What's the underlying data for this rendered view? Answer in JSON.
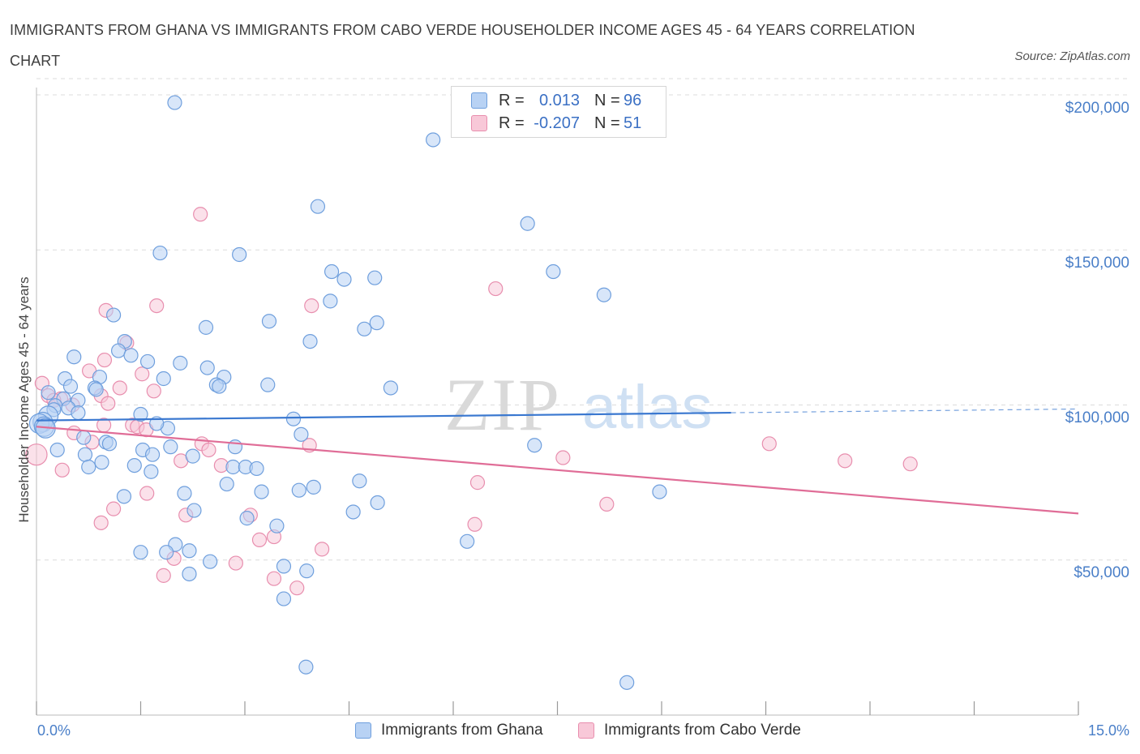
{
  "title": "IMMIGRANTS FROM GHANA VS IMMIGRANTS FROM CABO VERDE HOUSEHOLDER INCOME AGES 45 - 64 YEARS CORRELATION CHART",
  "source": "Source: ZipAtlas.com",
  "watermark": {
    "zip": "ZIP",
    "atlas": "atlas"
  },
  "stats": {
    "r_label": "R =",
    "n_label": "N =",
    "ghana": {
      "r": "0.013",
      "n": "96"
    },
    "cabo": {
      "r": "-0.207",
      "n": "51"
    }
  },
  "colors": {
    "ghana_fill": "#b8d2f4",
    "ghana_stroke": "#6f9fdd",
    "ghana_line": "#3a78d0",
    "cabo_fill": "#f8c8d8",
    "cabo_stroke": "#e88eae",
    "cabo_line": "#e06d97",
    "grid": "#dcdcdc",
    "tick_label": "#4a7fc8"
  },
  "chart_data": {
    "type": "scatter",
    "title": "IMMIGRANTS FROM GHANA VS IMMIGRANTS FROM CABO VERDE HOUSEHOLDER INCOME AGES 45 - 64 YEARS CORRELATION CHART",
    "xlabel": "",
    "ylabel": "Householder Income Ages 45 - 64 years",
    "xlim": [
      0,
      15
    ],
    "ylim": [
      0,
      200000
    ],
    "x_tick_labels": [
      "0.0%",
      "15.0%"
    ],
    "y_ticks": [
      {
        "value": 200000,
        "label": "$200,000"
      },
      {
        "value": 150000,
        "label": "$150,000"
      },
      {
        "value": 100000,
        "label": "$100,000"
      },
      {
        "value": 50000,
        "label": "$50,000"
      }
    ],
    "grid": true,
    "legend": "bottom-center",
    "series": [
      {
        "name": "Immigrants from Ghana",
        "color": "#6f9fdd",
        "trend": {
          "x0": 0,
          "y0": 95000,
          "x1": 10,
          "y1": 97500,
          "dashed_to_x": 15,
          "dashed_to_y": 98700
        },
        "points": [
          [
            1.99,
            197500
          ],
          [
            5.71,
            185500
          ],
          [
            4.05,
            164000
          ],
          [
            7.07,
            158500
          ],
          [
            1.78,
            149000
          ],
          [
            2.92,
            148500
          ],
          [
            4.25,
            143000
          ],
          [
            4.43,
            140500
          ],
          [
            4.87,
            141000
          ],
          [
            7.44,
            143000
          ],
          [
            8.17,
            135500
          ],
          [
            4.23,
            133500
          ],
          [
            1.11,
            129000
          ],
          [
            3.35,
            127000
          ],
          [
            4.72,
            124500
          ],
          [
            4.9,
            126500
          ],
          [
            2.44,
            125000
          ],
          [
            3.94,
            120500
          ],
          [
            1.27,
            120500
          ],
          [
            1.18,
            117500
          ],
          [
            0.54,
            115500
          ],
          [
            1.36,
            116000
          ],
          [
            1.6,
            114000
          ],
          [
            2.07,
            113500
          ],
          [
            2.46,
            112000
          ],
          [
            0.91,
            109000
          ],
          [
            1.83,
            108500
          ],
          [
            2.7,
            109000
          ],
          [
            0.41,
            108500
          ],
          [
            0.49,
            106000
          ],
          [
            0.84,
            105500
          ],
          [
            0.86,
            105000
          ],
          [
            2.59,
            106500
          ],
          [
            2.63,
            106000
          ],
          [
            3.33,
            106500
          ],
          [
            5.1,
            105500
          ],
          [
            0.17,
            104000
          ],
          [
            0.39,
            102000
          ],
          [
            0.6,
            101500
          ],
          [
            0.27,
            99800
          ],
          [
            0.46,
            99000
          ],
          [
            0.25,
            98500
          ],
          [
            0.17,
            96500
          ],
          [
            1.5,
            97000
          ],
          [
            3.7,
            95500
          ],
          [
            0.09,
            94500
          ],
          [
            0.04,
            94000
          ],
          [
            0.11,
            93000
          ],
          [
            0.13,
            92500
          ],
          [
            1.89,
            92500
          ],
          [
            3.81,
            90500
          ],
          [
            0.68,
            89500
          ],
          [
            1.0,
            88000
          ],
          [
            1.05,
            87500
          ],
          [
            1.93,
            86500
          ],
          [
            2.86,
            86500
          ],
          [
            1.53,
            85500
          ],
          [
            0.3,
            85500
          ],
          [
            1.67,
            84000
          ],
          [
            0.7,
            84000
          ],
          [
            2.25,
            83500
          ],
          [
            0.94,
            81500
          ],
          [
            0.75,
            80000
          ],
          [
            1.41,
            80500
          ],
          [
            2.83,
            80000
          ],
          [
            3.01,
            80000
          ],
          [
            3.17,
            79500
          ],
          [
            1.65,
            78500
          ],
          [
            4.65,
            75500
          ],
          [
            2.74,
            74500
          ],
          [
            3.99,
            73500
          ],
          [
            3.78,
            72500
          ],
          [
            3.24,
            72000
          ],
          [
            8.97,
            72000
          ],
          [
            1.26,
            70500
          ],
          [
            2.13,
            71500
          ],
          [
            4.91,
            68500
          ],
          [
            4.56,
            65500
          ],
          [
            2.27,
            66000
          ],
          [
            3.03,
            63500
          ],
          [
            3.46,
            61000
          ],
          [
            6.2,
            56000
          ],
          [
            2.0,
            55000
          ],
          [
            2.2,
            53000
          ],
          [
            1.5,
            52500
          ],
          [
            1.87,
            52500
          ],
          [
            2.5,
            49500
          ],
          [
            3.56,
            48000
          ],
          [
            3.89,
            46500
          ],
          [
            2.2,
            45500
          ],
          [
            3.56,
            37500
          ],
          [
            3.88,
            15500
          ],
          [
            8.5,
            10500
          ],
          [
            0.6,
            97500
          ],
          [
            1.73,
            94000
          ],
          [
            7.17,
            87000
          ]
        ]
      },
      {
        "name": "Immigrants from Cabo Verde",
        "color": "#e88eae",
        "trend": {
          "x0": 0,
          "y0": 93000,
          "x1": 15,
          "y1": 65000
        },
        "points": [
          [
            2.36,
            161500
          ],
          [
            6.61,
            137500
          ],
          [
            1.73,
            132000
          ],
          [
            3.96,
            132000
          ],
          [
            1.0,
            130500
          ],
          [
            1.3,
            120000
          ],
          [
            0.98,
            114500
          ],
          [
            0.76,
            111000
          ],
          [
            1.52,
            110000
          ],
          [
            0.08,
            107000
          ],
          [
            1.2,
            105500
          ],
          [
            1.69,
            104500
          ],
          [
            0.93,
            103000
          ],
          [
            0.17,
            103000
          ],
          [
            0.35,
            102000
          ],
          [
            1.03,
            100500
          ],
          [
            0.25,
            101500
          ],
          [
            0.52,
            100000
          ],
          [
            1.38,
            93500
          ],
          [
            1.45,
            93000
          ],
          [
            0.97,
            93500
          ],
          [
            1.58,
            92000
          ],
          [
            0.54,
            91000
          ],
          [
            0.8,
            88000
          ],
          [
            2.38,
            87500
          ],
          [
            3.93,
            87000
          ],
          [
            10.55,
            87500
          ],
          [
            2.48,
            85500
          ],
          [
            7.58,
            83000
          ],
          [
            2.08,
            82000
          ],
          [
            11.64,
            82000
          ],
          [
            2.66,
            80500
          ],
          [
            12.58,
            81000
          ],
          [
            0.37,
            79000
          ],
          [
            6.35,
            75000
          ],
          [
            1.59,
            71500
          ],
          [
            8.21,
            68000
          ],
          [
            1.11,
            66500
          ],
          [
            2.15,
            64500
          ],
          [
            3.08,
            64500
          ],
          [
            0.93,
            62000
          ],
          [
            6.31,
            61500
          ],
          [
            3.42,
            57500
          ],
          [
            3.21,
            56500
          ],
          [
            4.11,
            53500
          ],
          [
            1.98,
            50500
          ],
          [
            2.87,
            49000
          ],
          [
            1.83,
            45000
          ],
          [
            3.42,
            44000
          ],
          [
            3.75,
            41000
          ],
          [
            0.0,
            84000
          ]
        ]
      }
    ]
  },
  "legend_items": [
    {
      "label": "Immigrants from Ghana"
    },
    {
      "label": "Immigrants from Cabo Verde"
    }
  ]
}
